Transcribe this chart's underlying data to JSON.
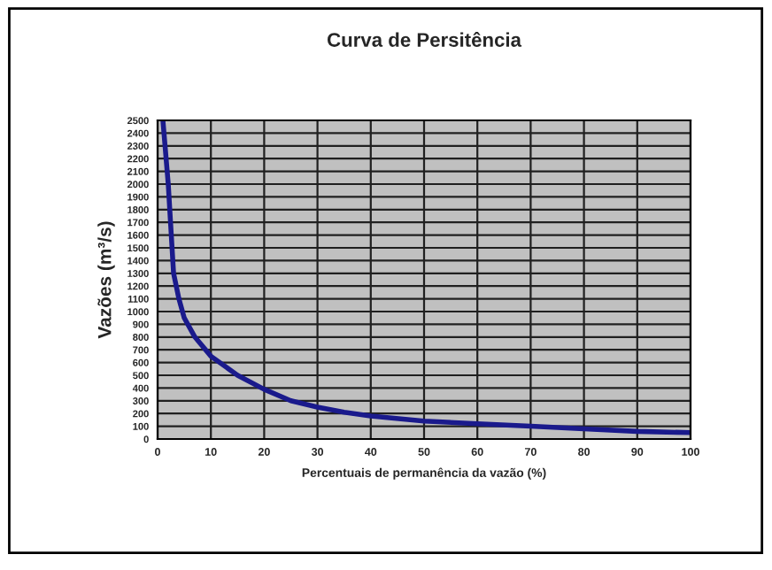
{
  "chart_data": {
    "type": "line",
    "title": "Curva de Persitência",
    "xlabel": "Percentuais de permanência da vazão (%)",
    "ylabel": "Vazões (m³/s)",
    "x": [
      1,
      2,
      3,
      4,
      5,
      7,
      10,
      15,
      20,
      25,
      30,
      35,
      40,
      50,
      60,
      70,
      80,
      90,
      100
    ],
    "series": [
      {
        "color": "#1a1a8c",
        "values": [
          2500,
          2000,
          1300,
          1100,
          950,
          800,
          650,
          500,
          390,
          300,
          250,
          210,
          180,
          140,
          120,
          100,
          80,
          60,
          50
        ]
      }
    ],
    "xlim": [
      0,
      100
    ],
    "xticks": [
      0,
      10,
      20,
      30,
      40,
      50,
      60,
      70,
      80,
      90,
      100
    ],
    "ylim": [
      0,
      2500
    ],
    "yticks": [
      0,
      100,
      200,
      300,
      400,
      500,
      600,
      700,
      800,
      900,
      1000,
      1100,
      1200,
      1300,
      1400,
      1500,
      1600,
      1700,
      1800,
      1900,
      2000,
      2100,
      2200,
      2300,
      2400,
      2500
    ],
    "grid": true,
    "line_style": "solid"
  }
}
